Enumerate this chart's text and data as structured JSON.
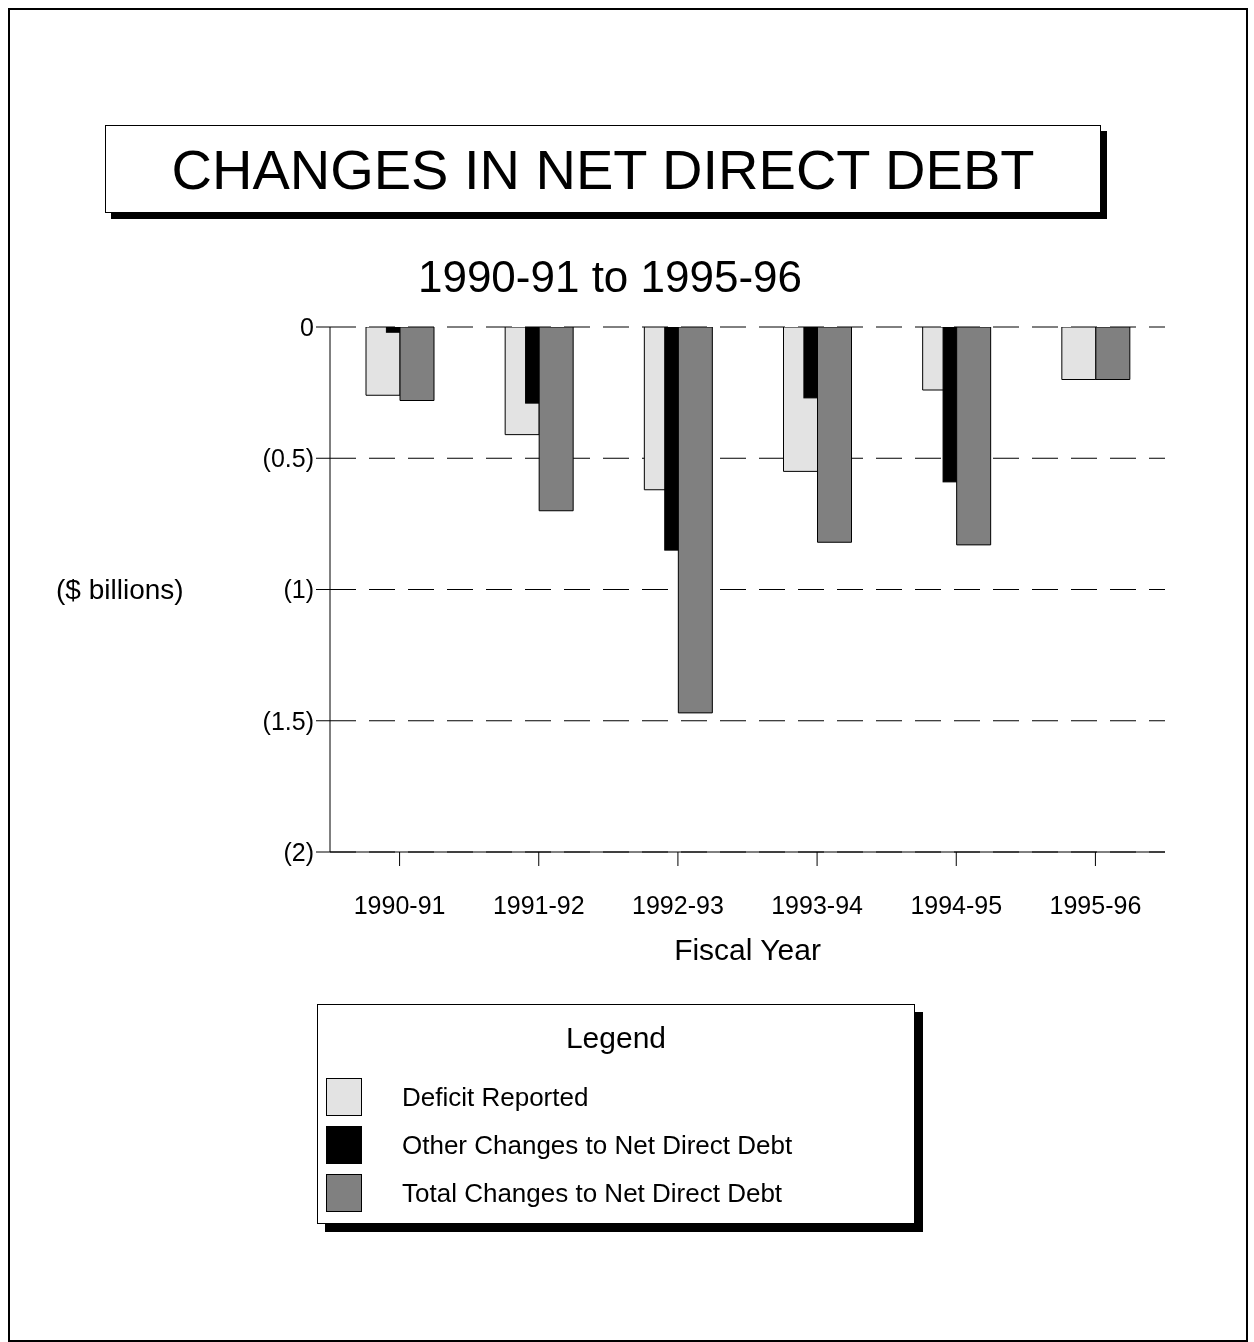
{
  "chart_data": {
    "type": "bar",
    "title": "CHANGES IN NET DIRECT DEBT",
    "subtitle": "1990-91 to 1995-96",
    "xlabel": "Fiscal Year",
    "ylabel": "($ billions)",
    "legend_title": "Legend",
    "categories": [
      "1990-91",
      "1991-92",
      "1992-93",
      "1993-94",
      "1994-95",
      "1995-96"
    ],
    "series": [
      {
        "name": "Deficit Reported",
        "color": "#e3e3e3",
        "values": [
          -0.26,
          -0.41,
          -0.62,
          -0.55,
          -0.24,
          -0.2
        ]
      },
      {
        "name": "Other Changes to Net Direct Debt",
        "color": "#000000",
        "values": [
          -0.02,
          -0.29,
          -0.85,
          -0.27,
          -0.59,
          0
        ]
      },
      {
        "name": "Total Changes to Net Direct Debt",
        "color": "#808080",
        "values": [
          -0.28,
          -0.7,
          -1.47,
          -0.82,
          -0.83,
          -0.2
        ]
      }
    ],
    "ylim": [
      -2,
      0
    ],
    "yticks": [
      {
        "value": 0,
        "label": "0"
      },
      {
        "value": -0.5,
        "label": "(0.5)"
      },
      {
        "value": -1,
        "label": "(1)"
      },
      {
        "value": -1.5,
        "label": "(1.5)"
      },
      {
        "value": -2,
        "label": "(2)"
      }
    ],
    "grid": "y",
    "legend": "bottom"
  }
}
